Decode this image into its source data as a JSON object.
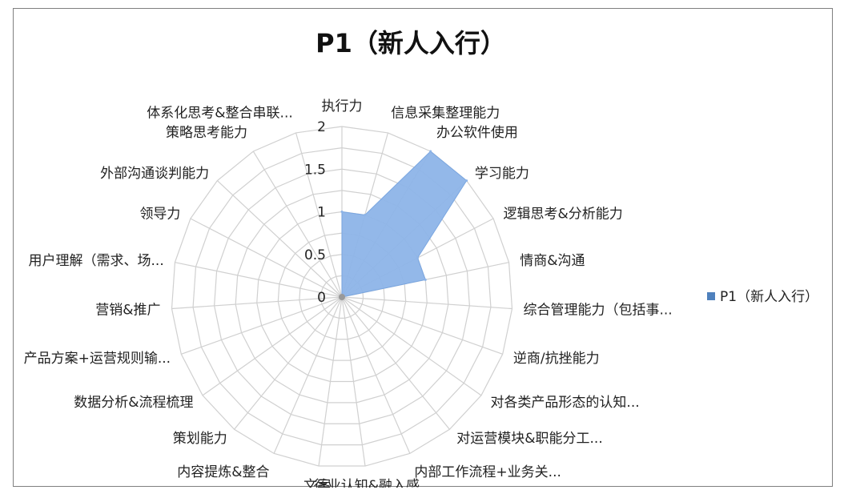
{
  "chart_data": {
    "type": "radar",
    "title": "P1（新人入行）",
    "categories": [
      "执行力",
      "信息采集整理能力",
      "办公软件使用",
      "学习能力",
      "逻辑思考&分析能力",
      "情商&沟通",
      "综合管理能力（包括事...",
      "逆商/抗挫能力",
      "对各类产品形态的认知...",
      "对运营模块&职能分工...",
      "内部工作流程+业务关...",
      "行业认知&融入感",
      "文案",
      "内容提炼&整合",
      "策划能力",
      "数据分析&流程梳理",
      "产品方案+运营规则输...",
      "营销&推广",
      "用户理解（需求、场...",
      "领导力",
      "外部沟通谈判能力",
      "策略思考能力",
      "体系化思考&整合串联..."
    ],
    "series": [
      {
        "name": "P1（新人入行）",
        "values": [
          1,
          1,
          2,
          2,
          1,
          1,
          0,
          0,
          0,
          0,
          0,
          0,
          0,
          0,
          0,
          0,
          0,
          0,
          0,
          0,
          0,
          0,
          0
        ],
        "color": "#8db4e8"
      }
    ],
    "rlim": [
      0,
      2
    ],
    "ticks": [
      "0",
      "0.5",
      "1",
      "1.5",
      "2"
    ],
    "tick_values": [
      0,
      0.5,
      1,
      1.5,
      2
    ],
    "gridline_color": "#d0d0d0",
    "legend_position": "right"
  }
}
